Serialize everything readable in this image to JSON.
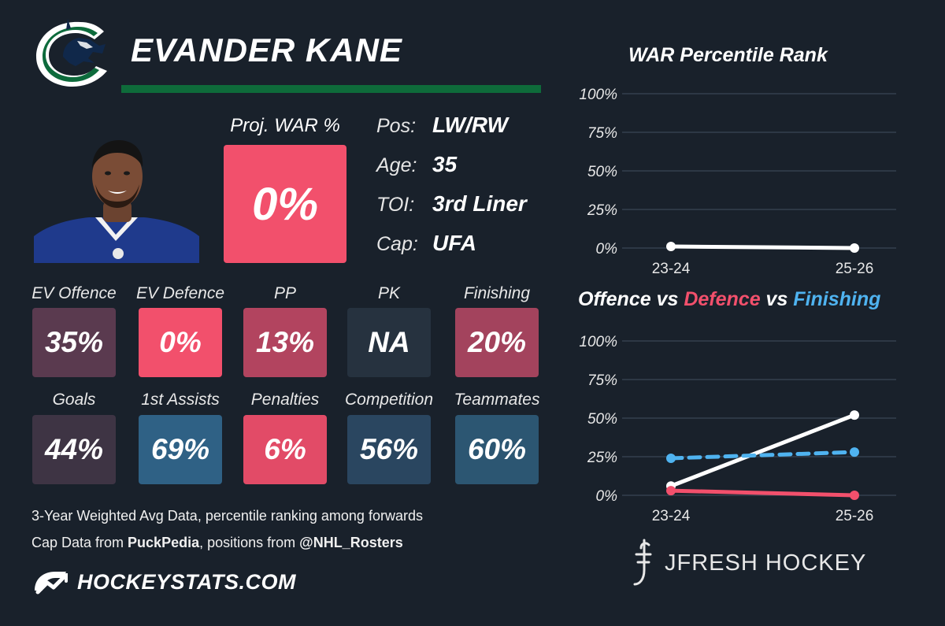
{
  "player": {
    "name": "EVANDER KANE"
  },
  "proj_war": {
    "label": "Proj. WAR %",
    "value": "0%"
  },
  "info": [
    {
      "key": "Pos:",
      "value": "LW/RW"
    },
    {
      "key": "Age:",
      "value": "35"
    },
    {
      "key": "TOI:",
      "value": "3rd Liner"
    },
    {
      "key": "Cap:",
      "value": "UFA"
    }
  ],
  "tiles_row1": [
    {
      "label": "EV Offence",
      "value": "35%",
      "color": "#5a3a4f"
    },
    {
      "label": "EV Defence",
      "value": "0%",
      "color": "#f2506c"
    },
    {
      "label": "PP",
      "value": "13%",
      "color": "#b2445f"
    },
    {
      "label": "PK",
      "value": "NA",
      "color": "#26323f"
    },
    {
      "label": "Finishing",
      "value": "20%",
      "color": "#a3435d"
    }
  ],
  "tiles_row2": [
    {
      "label": "Goals",
      "value": "44%",
      "color": "#3e3444"
    },
    {
      "label": "1st Assists",
      "value": "69%",
      "color": "#2f6185"
    },
    {
      "label": "Penalties",
      "value": "6%",
      "color": "#e24b67"
    },
    {
      "label": "Competition",
      "value": "56%",
      "color": "#2a4660"
    },
    {
      "label": "Teammates",
      "value": "60%",
      "color": "#2c5672"
    }
  ],
  "footer": {
    "line1": "3-Year Weighted Avg Data, percentile ranking among forwards",
    "line2_prefix": "Cap Data from ",
    "line2_source": "PuckPedia",
    "line2_mid": ", positions from ",
    "line2_handle": "@NHL_Rosters",
    "site": "HOCKEYSTATS.COM"
  },
  "brand": "JFRESH HOCKEY",
  "chart_data": [
    {
      "type": "line",
      "title": "WAR Percentile Rank",
      "x": [
        "23-24",
        "25-26"
      ],
      "y_ticks": [
        "0%",
        "25%",
        "50%",
        "75%",
        "100%"
      ],
      "ylim": [
        0,
        100
      ],
      "grid": true,
      "series": [
        {
          "values": [
            1,
            0
          ],
          "color": "#ffffff",
          "dashed": false
        }
      ]
    },
    {
      "type": "line",
      "title_parts": [
        {
          "text": "Offence vs ",
          "color": "#ffffff"
        },
        {
          "text": "Defence",
          "color": "#f2506c"
        },
        {
          "text": " vs ",
          "color": "#ffffff"
        },
        {
          "text": "Finishing",
          "color": "#4fb3f0"
        }
      ],
      "x": [
        "23-24",
        "25-26"
      ],
      "y_ticks": [
        "0%",
        "25%",
        "50%",
        "75%",
        "100%"
      ],
      "ylim": [
        0,
        100
      ],
      "grid": true,
      "series": [
        {
          "values": [
            6,
            52
          ],
          "color": "#ffffff",
          "dashed": false
        },
        {
          "values": [
            3,
            0
          ],
          "color": "#f2506c",
          "dashed": false
        },
        {
          "values": [
            24,
            28
          ],
          "color": "#4fb3f0",
          "dashed": true
        }
      ]
    }
  ]
}
